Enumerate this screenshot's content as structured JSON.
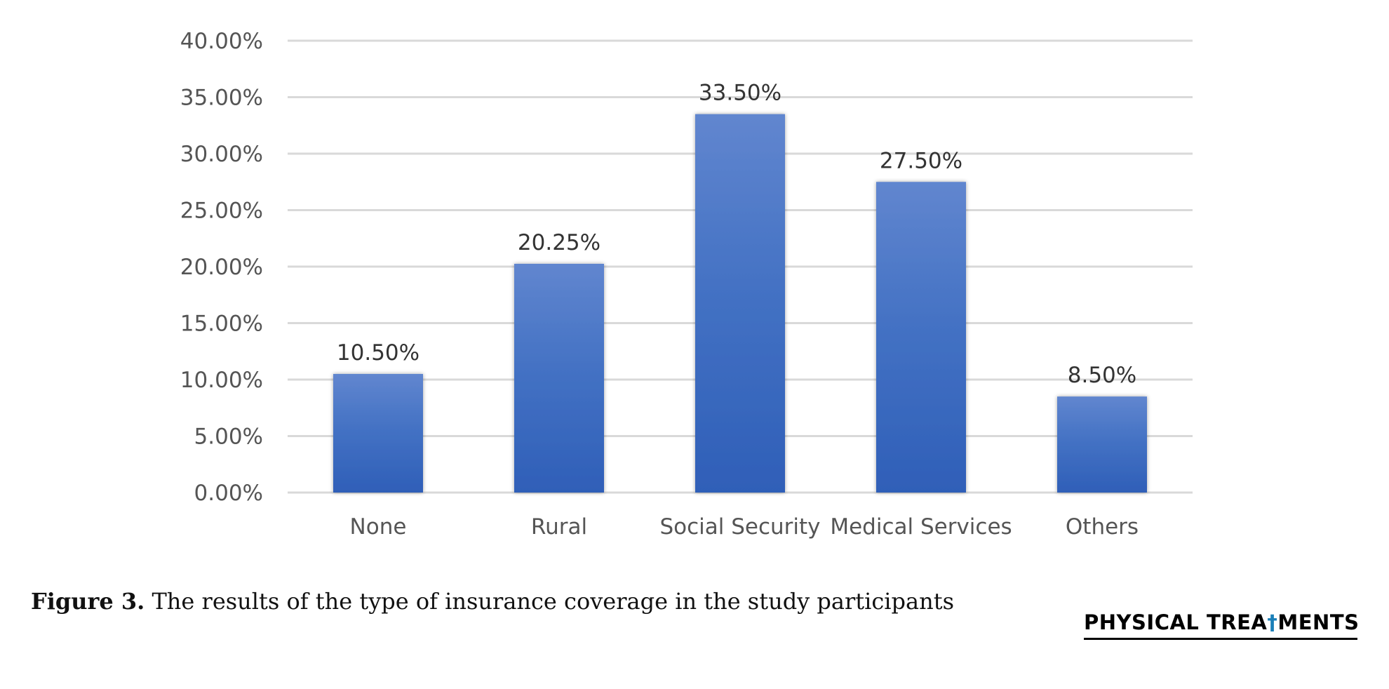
{
  "chart_data": {
    "type": "bar",
    "categories": [
      "None",
      "Rural",
      "Social Security",
      "Medical Services",
      "Others"
    ],
    "values": [
      10.5,
      20.25,
      33.5,
      27.5,
      8.5
    ],
    "data_labels": [
      "10.50%",
      "20.25%",
      "33.50%",
      "27.50%",
      "8.50%"
    ],
    "yticks": [
      0,
      5,
      10,
      15,
      20,
      25,
      30,
      35,
      40
    ],
    "ytick_labels": [
      "0.00%",
      "5.00%",
      "10.00%",
      "15.00%",
      "20.00%",
      "25.00%",
      "30.00%",
      "35.00%",
      "40.00%"
    ],
    "ylim": [
      0,
      40
    ],
    "grid": true,
    "title": "",
    "xlabel": "",
    "ylabel": "",
    "colors": {
      "bar_top": "#6186cf",
      "bar_mid": "#4472c4",
      "bar_bottom": "#2f5fb8",
      "grid": "#d9d9d9"
    }
  },
  "caption": {
    "label": "Figure 3.",
    "text": " The results of the type of insurance coverage in the study participants"
  },
  "logo": {
    "part1": "PHYSICAL TREA",
    "part2": "MENTS"
  }
}
